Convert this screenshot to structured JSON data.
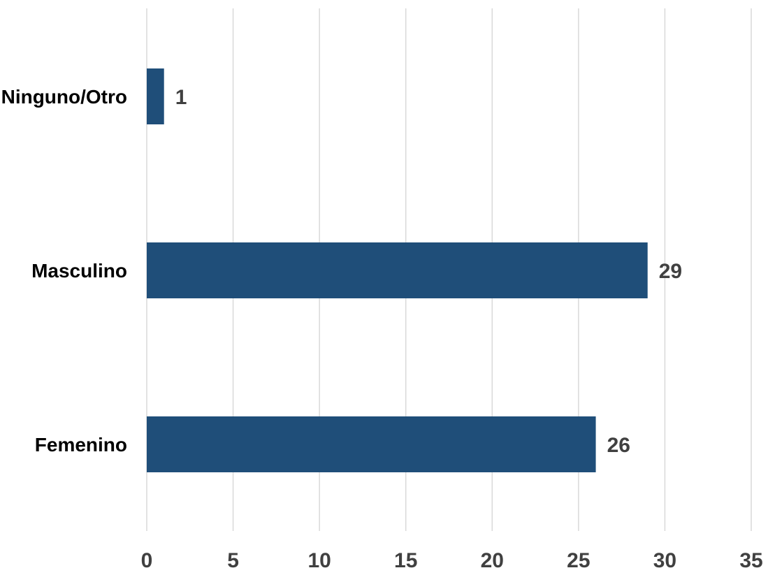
{
  "chart_data": {
    "type": "bar",
    "orientation": "horizontal",
    "title": "",
    "xlabel": "",
    "ylabel": "",
    "categories": [
      "Ninguno/Otro",
      "Masculino",
      "Femenino"
    ],
    "values": [
      1,
      29,
      26
    ],
    "data_labels": [
      "1",
      "29",
      "26"
    ],
    "xlim": [
      0,
      35
    ],
    "x_ticks": [
      0,
      5,
      10,
      15,
      20,
      25,
      30,
      35
    ],
    "x_tick_labels": [
      "0",
      "5",
      "10",
      "15",
      "20",
      "25",
      "30",
      "35"
    ],
    "grid": "vertical",
    "legend": "none",
    "colors": {
      "bar": "#1f4e79",
      "grid": "#d9d9d9",
      "category_label": "#000000",
      "data_label": "#404040",
      "tick_label": "#404040"
    }
  }
}
